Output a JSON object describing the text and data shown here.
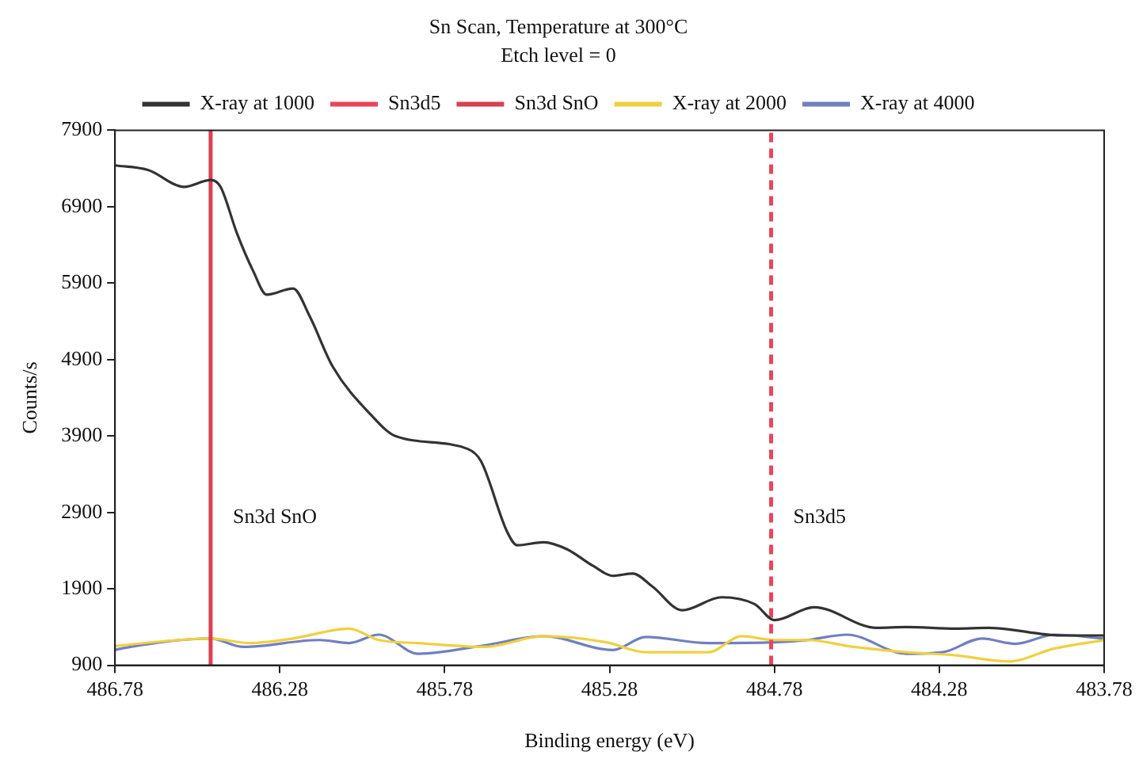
{
  "chart_data": {
    "type": "line",
    "title": "Sn Scan, Temperature at 300°C",
    "subtitle": "Etch level = 0",
    "xlabel": "Binding energy (eV)",
    "ylabel": "Counts/s",
    "xlim": [
      486.78,
      483.78
    ],
    "xticks": [
      486.78,
      486.28,
      485.78,
      485.28,
      484.78,
      484.28,
      483.78
    ],
    "ylim": [
      900,
      7900
    ],
    "yticks": [
      900,
      1900,
      2900,
      3900,
      4900,
      5900,
      6900,
      7900
    ],
    "grid": false,
    "legend": "top",
    "marker": "none",
    "line_style": "solid",
    "series": [
      {
        "name": "X-ray at 1000",
        "color": "#333333",
        "x": [
          486.78,
          486.68,
          486.57,
          486.49,
          486.46,
          486.41,
          486.36,
          486.32,
          486.24,
          486.19,
          486.12,
          486.0,
          485.93,
          485.71,
          485.67,
          485.59,
          485.56,
          485.48,
          485.41,
          485.33,
          485.27,
          485.21,
          485.15,
          485.06,
          484.94,
          484.84,
          484.78,
          484.66,
          484.47,
          484.38,
          484.23,
          484.13,
          483.91,
          483.78
        ],
        "values": [
          7440,
          7380,
          7160,
          7250,
          7160,
          6550,
          6050,
          5750,
          5830,
          5470,
          4810,
          4160,
          3900,
          3730,
          3570,
          2640,
          2470,
          2510,
          2420,
          2200,
          2070,
          2100,
          1930,
          1620,
          1790,
          1700,
          1490,
          1660,
          1390,
          1400,
          1380,
          1390,
          1290,
          1290
        ]
      },
      {
        "name": "X-ray at 2000",
        "color": "#f0d040",
        "x": [
          486.78,
          486.76,
          486.49,
          486.37,
          486.24,
          486.07,
          485.98,
          485.86,
          485.66,
          485.48,
          485.29,
          485.17,
          484.98,
          484.88,
          484.78,
          484.68,
          484.54,
          484.38,
          484.23,
          484.07,
          483.93,
          483.78
        ],
        "values": [
          1150,
          1160,
          1250,
          1190,
          1250,
          1380,
          1230,
          1190,
          1140,
          1280,
          1200,
          1070,
          1070,
          1280,
          1230,
          1230,
          1140,
          1070,
          1030,
          950,
          1120,
          1230
        ]
      },
      {
        "name": "X-ray at 4000",
        "color": "#7080c0",
        "x": [
          486.78,
          486.76,
          486.49,
          486.39,
          486.16,
          486.07,
          485.98,
          485.86,
          485.66,
          485.48,
          485.27,
          485.17,
          484.98,
          484.78,
          484.68,
          484.56,
          484.38,
          484.27,
          484.15,
          484.05,
          483.93,
          483.78
        ],
        "values": [
          1100,
          1120,
          1250,
          1140,
          1230,
          1190,
          1300,
          1050,
          1160,
          1280,
          1100,
          1270,
          1190,
          1200,
          1230,
          1300,
          1050,
          1070,
          1250,
          1180,
          1300,
          1250
        ]
      }
    ],
    "ref_lines": [
      {
        "axis": "x",
        "value": 484.79,
        "label": "Sn3d5",
        "color": "#e8455a",
        "line_style": "dashed"
      },
      {
        "axis": "x",
        "value": 486.49,
        "label": "Sn3d SnO",
        "color": "#d94050",
        "line_style": "solid"
      }
    ]
  }
}
